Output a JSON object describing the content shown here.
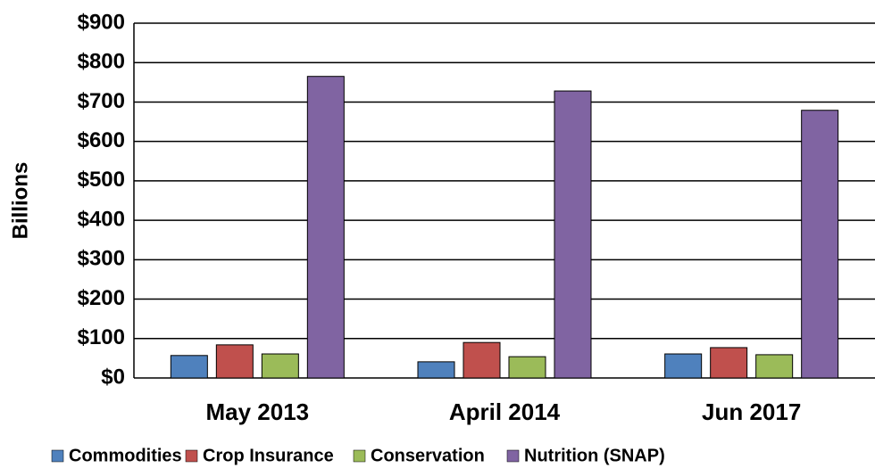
{
  "chart_data": {
    "type": "bar",
    "y_label": "Billions",
    "categories": [
      "May 2013",
      "April 2014",
      "Jun 2017"
    ],
    "series": [
      {
        "name": "Commodities",
        "color": "#4f81bd",
        "values": [
          57,
          41,
          61
        ]
      },
      {
        "name": "Crop Insurance",
        "color": "#c0504d",
        "values": [
          84,
          90,
          77
        ]
      },
      {
        "name": "Conservation",
        "color": "#9bbb59",
        "values": [
          61,
          54,
          59
        ]
      },
      {
        "name": "Nutrition (SNAP)",
        "color": "#8064a2",
        "values": [
          765,
          728,
          679
        ]
      }
    ],
    "ylim": [
      0,
      900
    ],
    "yticks": [
      {
        "value": 0,
        "label": "$0"
      },
      {
        "value": 100,
        "label": "$100"
      },
      {
        "value": 200,
        "label": "$200"
      },
      {
        "value": 300,
        "label": "$300"
      },
      {
        "value": 400,
        "label": "$400"
      },
      {
        "value": 500,
        "label": "$500"
      },
      {
        "value": 600,
        "label": "$600"
      },
      {
        "value": 700,
        "label": "$700"
      },
      {
        "value": 800,
        "label": "$800"
      },
      {
        "value": 900,
        "label": "$900"
      }
    ],
    "grid": true,
    "legend": "bottom"
  }
}
